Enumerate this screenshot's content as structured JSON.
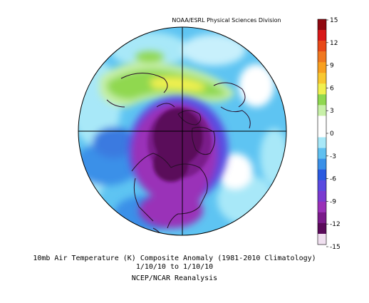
{
  "figure": {
    "credit": "NOAA/ESRL Physical Sciences Division",
    "title": "10mb Air Temperature (K) Composite Anomaly (1981-2010 Climatology)",
    "dates": "1/10/10  to 1/10/10",
    "source": "NCEP/NCAR Reanalysis"
  },
  "colorbar": {
    "ticks": [
      "15",
      "12",
      "9",
      "6",
      "3",
      "0",
      "-3",
      "-6",
      "-9",
      "-12",
      "-15"
    ],
    "colors": [
      "#f0e0f0",
      "#5a0a5a",
      "#7a1a8a",
      "#9a30b8",
      "#7a3ad0",
      "#5a4ae0",
      "#2a5ae0",
      "#3a90e8",
      "#60c0f0",
      "#a8e8f8",
      "#ffffff",
      "#ffffff",
      "#c8f0a8",
      "#90d850",
      "#f0f050",
      "#f8c830",
      "#f8a020",
      "#f07820",
      "#e84818",
      "#d81818",
      "#900810"
    ]
  }
}
